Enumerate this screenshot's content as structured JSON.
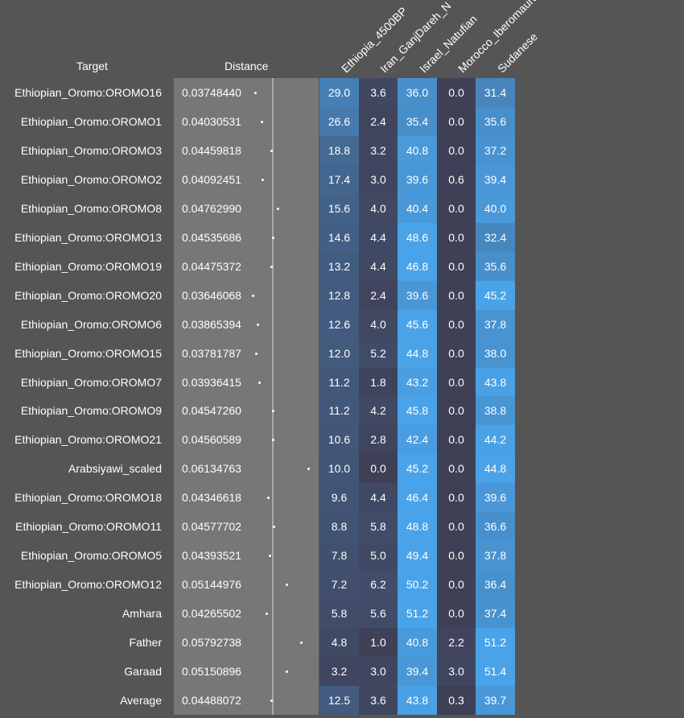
{
  "chart_data": {
    "type": "table",
    "headers": {
      "target": "Target",
      "distance": "Distance"
    },
    "columns": [
      "Ethiopia_4500BP",
      "Iran_GanjDareh_N",
      "Israel_Natufian",
      "Morocco_Iberomaurusian",
      "Sudanese"
    ],
    "rows": [
      {
        "target": "Ethiopian_Oromo:OROMO16",
        "distance": "0.03748440",
        "values": [
          "29.0",
          "3.6",
          "36.0",
          "0.0",
          "31.4"
        ]
      },
      {
        "target": "Ethiopian_Oromo:OROMO1",
        "distance": "0.04030531",
        "values": [
          "26.6",
          "2.4",
          "35.4",
          "0.0",
          "35.6"
        ]
      },
      {
        "target": "Ethiopian_Oromo:OROMO3",
        "distance": "0.04459818",
        "values": [
          "18.8",
          "3.2",
          "40.8",
          "0.0",
          "37.2"
        ]
      },
      {
        "target": "Ethiopian_Oromo:OROMO2",
        "distance": "0.04092451",
        "values": [
          "17.4",
          "3.0",
          "39.6",
          "0.6",
          "39.4"
        ]
      },
      {
        "target": "Ethiopian_Oromo:OROMO8",
        "distance": "0.04762990",
        "values": [
          "15.6",
          "4.0",
          "40.4",
          "0.0",
          "40.0"
        ]
      },
      {
        "target": "Ethiopian_Oromo:OROMO13",
        "distance": "0.04535686",
        "values": [
          "14.6",
          "4.4",
          "48.6",
          "0.0",
          "32.4"
        ]
      },
      {
        "target": "Ethiopian_Oromo:OROMO19",
        "distance": "0.04475372",
        "values": [
          "13.2",
          "4.4",
          "46.8",
          "0.0",
          "35.6"
        ]
      },
      {
        "target": "Ethiopian_Oromo:OROMO20",
        "distance": "0.03646068",
        "values": [
          "12.8",
          "2.4",
          "39.6",
          "0.0",
          "45.2"
        ]
      },
      {
        "target": "Ethiopian_Oromo:OROMO6",
        "distance": "0.03865394",
        "values": [
          "12.6",
          "4.0",
          "45.6",
          "0.0",
          "37.8"
        ]
      },
      {
        "target": "Ethiopian_Oromo:OROMO15",
        "distance": "0.03781787",
        "values": [
          "12.0",
          "5.2",
          "44.8",
          "0.0",
          "38.0"
        ]
      },
      {
        "target": "Ethiopian_Oromo:OROMO7",
        "distance": "0.03936415",
        "values": [
          "11.2",
          "1.8",
          "43.2",
          "0.0",
          "43.8"
        ]
      },
      {
        "target": "Ethiopian_Oromo:OROMO9",
        "distance": "0.04547260",
        "values": [
          "11.2",
          "4.2",
          "45.8",
          "0.0",
          "38.8"
        ]
      },
      {
        "target": "Ethiopian_Oromo:OROMO21",
        "distance": "0.04560589",
        "values": [
          "10.6",
          "2.8",
          "42.4",
          "0.0",
          "44.2"
        ]
      },
      {
        "target": "Arabsiyawi_scaled",
        "distance": "0.06134763",
        "values": [
          "10.0",
          "0.0",
          "45.2",
          "0.0",
          "44.8"
        ]
      },
      {
        "target": "Ethiopian_Oromo:OROMO18",
        "distance": "0.04346618",
        "values": [
          "9.6",
          "4.4",
          "46.4",
          "0.0",
          "39.6"
        ]
      },
      {
        "target": "Ethiopian_Oromo:OROMO11",
        "distance": "0.04577702",
        "values": [
          "8.8",
          "5.8",
          "48.8",
          "0.0",
          "36.6"
        ]
      },
      {
        "target": "Ethiopian_Oromo:OROMO5",
        "distance": "0.04393521",
        "values": [
          "7.8",
          "5.0",
          "49.4",
          "0.0",
          "37.8"
        ]
      },
      {
        "target": "Ethiopian_Oromo:OROMO12",
        "distance": "0.05144976",
        "values": [
          "7.2",
          "6.2",
          "50.2",
          "0.0",
          "36.4"
        ]
      },
      {
        "target": "Amhara",
        "distance": "0.04265502",
        "values": [
          "5.8",
          "5.6",
          "51.2",
          "0.0",
          "37.4"
        ]
      },
      {
        "target": "Father",
        "distance": "0.05792738",
        "values": [
          "4.8",
          "1.0",
          "40.8",
          "2.2",
          "51.2"
        ]
      },
      {
        "target": "Garaad",
        "distance": "0.05150896",
        "values": [
          "3.2",
          "3.0",
          "39.4",
          "3.0",
          "51.4"
        ]
      },
      {
        "target": "Average",
        "distance": "0.04488072",
        "values": [
          "12.5",
          "3.6",
          "43.8",
          "0.3",
          "39.7"
        ]
      }
    ],
    "colors": {
      "background": "#555555",
      "distance_panel": "#777777",
      "cell_low": "#3f3f55",
      "cell_high": "#4aa3e8"
    }
  }
}
